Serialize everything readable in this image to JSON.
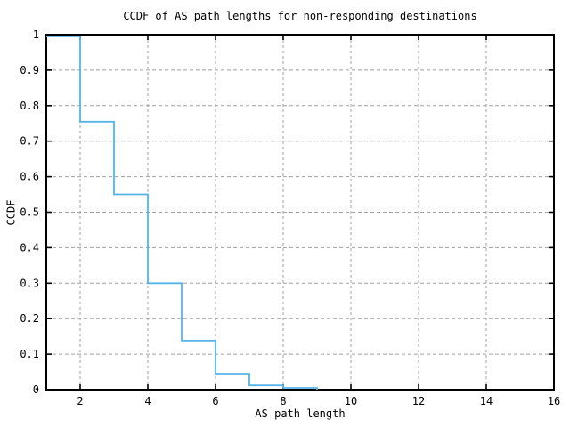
{
  "page": {
    "background_color": "#ffffff"
  },
  "chart_data": {
    "type": "line",
    "subtype": "ccdf-step-function",
    "title": "CCDF of AS path lengths for non-responding destinations",
    "xlabel": "AS path length",
    "ylabel": "CCDF",
    "xlim": [
      1,
      16
    ],
    "ylim": [
      0,
      1
    ],
    "x_ticks": [
      2,
      4,
      6,
      8,
      10,
      12,
      14,
      16
    ],
    "y_ticks": [
      0,
      0.1,
      0.2,
      0.3,
      0.4,
      0.5,
      0.6,
      0.7,
      0.8,
      0.9,
      1
    ],
    "y_tick_labels": [
      "0",
      "0.1",
      "0.2",
      "0.3",
      "0.4",
      "0.5",
      "0.6",
      "0.7",
      "0.8",
      "0.9",
      "1"
    ],
    "grid": true,
    "grid_style": "dashed",
    "legend": "none",
    "series": [
      {
        "name": "CCDF of AS path length",
        "color": "#56b4e9",
        "steps": [
          {
            "x_start": 1,
            "x_end": 2,
            "y": 0.995
          },
          {
            "x_start": 2,
            "x_end": 3,
            "y": 0.755
          },
          {
            "x_start": 3,
            "x_end": 4,
            "y": 0.55
          },
          {
            "x_start": 4,
            "x_end": 5,
            "y": 0.3
          },
          {
            "x_start": 5,
            "x_end": 6,
            "y": 0.138
          },
          {
            "x_start": 6,
            "x_end": 7,
            "y": 0.045
          },
          {
            "x_start": 7,
            "x_end": 8,
            "y": 0.012
          },
          {
            "x_start": 8,
            "x_end": 9,
            "y": 0.005
          }
        ],
        "final_drop_to_zero_at_x": 9
      }
    ],
    "colors": {
      "axis": "#000000",
      "grid": "#a0a0a0",
      "text": "#000000",
      "background": "#ffffff"
    }
  }
}
